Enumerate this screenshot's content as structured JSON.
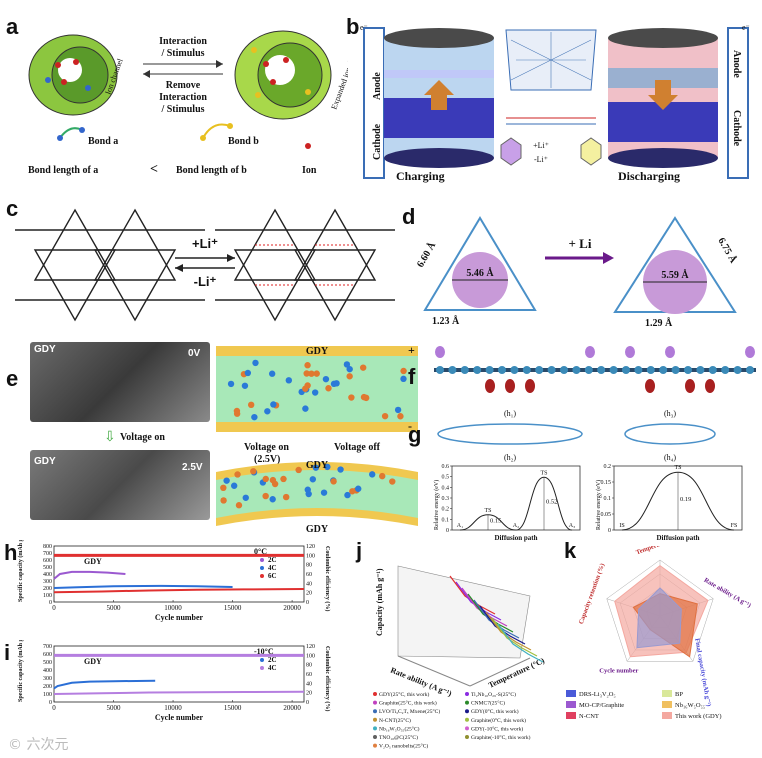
{
  "panels": {
    "a": {
      "label": "a",
      "interaction": "Interaction",
      "stimulus": "/ Stimulus",
      "remove": "Remove",
      "remove_interaction": "Interaction",
      "remove_stimulus": "/ Stimulus",
      "ion_channel": "Ion channel",
      "expanded_channel": "Expanded ion channel",
      "bond_a": "Bond a",
      "bond_b": "Bond b",
      "bond_len_a": "Bond length of a",
      "less_than": "<",
      "bond_len_b": "Bond length of b",
      "ion": "Ion"
    },
    "b": {
      "label": "b",
      "anode": "Anode",
      "cathode": "Cathode",
      "charging": "Charging",
      "discharging": "Discharging",
      "li_plus": "+Li⁺",
      "li_minus": "-Li⁺",
      "eminus": "e⁻"
    },
    "c": {
      "label": "c",
      "plus": "+Li⁺",
      "minus": "-Li⁺"
    },
    "d": {
      "label": "d",
      "arrow": "+ Li",
      "left_d1": "5.46 Å",
      "left_side": "6.60 Å",
      "left_bond": "1.23 Å",
      "right_d1": "5.59 Å",
      "right_side": "6.75 Å",
      "right_bond": "1.29 Å"
    },
    "e": {
      "label": "e",
      "gdy1": "GDY",
      "v0": "0V",
      "voltage_on": "Voltage on",
      "gdy2": "GDY",
      "v25": "2.5V",
      "gdy_top": "GDY",
      "gdy_mid": "GDY",
      "gdy_bot": "GDY",
      "von": "Voltage on",
      "von2": "(2.5V)",
      "voff": "Voltage off",
      "plus": "+",
      "minus": "-"
    },
    "f": {
      "label": "f"
    },
    "g": {
      "label": "g",
      "h1": "(h₁)",
      "h2": "(h₂)",
      "h3": "(h₃)",
      "h4": "(h₄)",
      "ylabel": "Relative energy (eV)",
      "xlabel": "Diffusion path"
    },
    "h": {
      "label": "h",
      "gdy": "GDY",
      "temp": "0°C",
      "ylabel": "Specific capacity (mAh g⁻¹)",
      "y2label": "Coulombic efficiency (%)",
      "xlabel": "Cycle number",
      "legend": [
        "2C",
        "4C",
        "6C"
      ]
    },
    "i": {
      "label": "i",
      "gdy": "GDY",
      "temp": "-10°C",
      "ylabel": "Specific capacity (mAh g⁻¹)",
      "y2label": "Coulombic efficiency (%)",
      "xlabel": "Cycle number",
      "legend": [
        "2C",
        "4C"
      ]
    },
    "j": {
      "label": "j",
      "zlabel": "Capacity (mAh g⁻¹)",
      "xlabel": "Rate ability (A g⁻¹)",
      "ylabel": "Temperature (°C)",
      "legend": [
        "GDY(25°C, this work)",
        "Ti₂Nb₁₀O₂₉-S(25°C)",
        "Graphite(25°C, this work)",
        "CNMC7(25°C)",
        "LVO/Ti₃C₂Tₓ Mxene(25°C)",
        "GDY(0°C, this work)",
        "N-CNT(25°C)",
        "Graphite(0°C, this work)",
        "Nb₁₆W₅O₅₅(25°C)",
        "GDY(-10°C, this work)",
        "TNO₁₀@C(25°C)",
        "Graphite(-10°C, this work)",
        "V₂O₅ nanobelts(25°C)"
      ]
    },
    "k": {
      "label": "k",
      "axes": [
        "Temperature (°C)",
        "Rate ability (A g⁻¹)",
        "Final capacity (mAh g⁻¹)",
        "Cycle number",
        "Capacity retention (%)"
      ],
      "legend": [
        "DRS-Li₃V₂O₅",
        "BP",
        "MO-CP/Graphite",
        "Nb₁₆W₅O₅₅",
        "N-CNT",
        "This work (GDY)"
      ]
    }
  },
  "chart_data": [
    {
      "id": "h",
      "type": "line",
      "xlabel": "Cycle number",
      "ylabel": "Specific capacity (mAh g⁻¹)",
      "y2label": "Coulombic efficiency (%)",
      "xlim": [
        0,
        21000
      ],
      "ylim": [
        0,
        800
      ],
      "y2lim": [
        0,
        120
      ],
      "xticks": [
        0,
        5000,
        10000,
        15000,
        20000
      ],
      "yticks": [
        0,
        100,
        200,
        300,
        400,
        500,
        600,
        700,
        800
      ],
      "y2ticks": [
        0,
        20,
        40,
        60,
        80,
        100,
        120
      ],
      "series": [
        {
          "name": "2C",
          "color": "#9b59d0",
          "x": [
            0,
            500,
            1500,
            3000,
            4500,
            6000
          ],
          "y": [
            330,
            400,
            430,
            430,
            420,
            400
          ]
        },
        {
          "name": "4C",
          "color": "#2b6fd6",
          "x": [
            0,
            2000,
            5000,
            9000,
            12000,
            15000
          ],
          "y": [
            200,
            210,
            225,
            230,
            225,
            215
          ]
        },
        {
          "name": "6C",
          "color": "#e03030",
          "x": [
            0,
            4000,
            8000,
            12000,
            16000,
            21000
          ],
          "y": [
            140,
            150,
            165,
            175,
            180,
            185
          ]
        }
      ],
      "ce_series": {
        "color": "#e03030",
        "value": 100
      }
    },
    {
      "id": "i",
      "type": "line",
      "xlabel": "Cycle number",
      "ylabel": "Specific capacity (mAh g⁻¹)",
      "y2label": "Coulombic efficiency (%)",
      "xlim": [
        0,
        21000
      ],
      "ylim": [
        0,
        700
      ],
      "y2lim": [
        0,
        120
      ],
      "xticks": [
        0,
        5000,
        10000,
        15000,
        20000
      ],
      "yticks": [
        0,
        100,
        200,
        300,
        400,
        500,
        600,
        700
      ],
      "y2ticks": [
        0,
        20,
        40,
        60,
        80,
        100,
        120
      ],
      "series": [
        {
          "name": "2C",
          "color": "#2b6fd6",
          "x": [
            0,
            300,
            1500,
            3000,
            5000,
            8500
          ],
          "y": [
            170,
            200,
            240,
            255,
            260,
            265
          ]
        },
        {
          "name": "4C",
          "color": "#b57ee0",
          "x": [
            0,
            4000,
            8000,
            12000,
            16000,
            21000
          ],
          "y": [
            100,
            110,
            118,
            122,
            125,
            128
          ]
        }
      ],
      "ce_series": {
        "color": "#b57ee0",
        "value": 100
      }
    },
    {
      "id": "g_h2",
      "type": "line",
      "xlabel": "Diffusion path",
      "ylabel": "Relative energy (eV)",
      "ylim": [
        0,
        0.6
      ],
      "yticks": [
        0,
        0.1,
        0.2,
        0.3,
        0.4,
        0.5,
        0.6
      ],
      "points": [
        {
          "label": "A₁",
          "y": 0
        },
        {
          "label": "TS",
          "y": 0.15
        },
        {
          "label": "A₂",
          "y": 0
        },
        {
          "label": "TS",
          "y": 0.52
        },
        {
          "label": "A₃",
          "y": 0
        }
      ],
      "annotations": [
        "0.15",
        "0.52"
      ]
    },
    {
      "id": "g_h4",
      "type": "line",
      "xlabel": "Diffusion path",
      "ylabel": "Relative energy (eV)",
      "ylim": [
        0,
        0.2
      ],
      "yticks": [
        0,
        0.05,
        0.1,
        0.15,
        0.2
      ],
      "points": [
        {
          "label": "IS",
          "y": 0
        },
        {
          "label": "TS",
          "y": 0.19
        },
        {
          "label": "FS",
          "y": 0
        }
      ],
      "annotations": [
        "0.19"
      ]
    },
    {
      "id": "k",
      "type": "radar",
      "axes": [
        "Temperature (°C)",
        "Rate ability (A g⁻¹)",
        "Final capacity (mAh g⁻¹)",
        "Cycle number",
        "Capacity retention (%)"
      ],
      "series": [
        {
          "name": "DRS-Li₃V₂O₅",
          "color": "#4a5ad8"
        },
        {
          "name": "BP",
          "color": "#d9e89a"
        },
        {
          "name": "MO-CP/Graphite",
          "color": "#9b59d0"
        },
        {
          "name": "Nb₁₆W₅O₅₅",
          "color": "#f0c060"
        },
        {
          "name": "N-CNT",
          "color": "#e04060"
        },
        {
          "name": "This work (GDY)",
          "color": "#f4a8a0"
        }
      ]
    }
  ]
}
